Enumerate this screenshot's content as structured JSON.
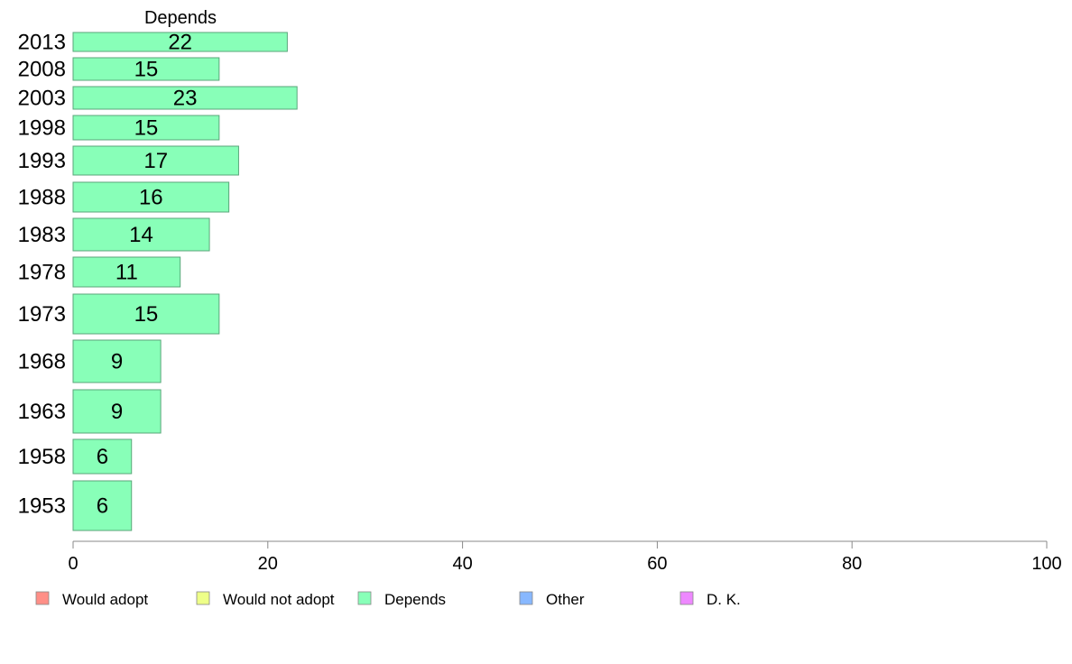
{
  "chart_data": {
    "type": "bar",
    "orientation": "horizontal",
    "panel_title": "Depends",
    "categories": [
      "2013",
      "2008",
      "2003",
      "1998",
      "1993",
      "1988",
      "1983",
      "1978",
      "1973",
      "1968",
      "1963",
      "1958",
      "1953"
    ],
    "series": [
      {
        "name": "Depends",
        "values": [
          22,
          15,
          23,
          15,
          17,
          16,
          14,
          11,
          15,
          9,
          9,
          6,
          6
        ],
        "color": "#88ffb8"
      }
    ],
    "xlim": [
      0,
      100
    ],
    "xticks": [
      0,
      20,
      40,
      60,
      80,
      100
    ],
    "grid": false,
    "legend": {
      "position": "bottom",
      "entries": [
        {
          "label": "Would adopt",
          "color": "#ff8f87"
        },
        {
          "label": "Would not adopt",
          "color": "#eeff88"
        },
        {
          "label": "Depends",
          "color": "#88ffb8"
        },
        {
          "label": "Other",
          "color": "#88b8ff"
        },
        {
          "label": "D. K.",
          "color": "#ee88ff"
        }
      ]
    }
  }
}
